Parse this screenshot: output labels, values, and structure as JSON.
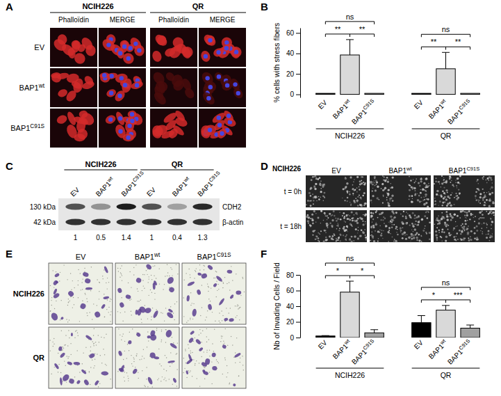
{
  "panels": {
    "A": {
      "panel_label": "A",
      "cell_lines": [
        "NCIH226",
        "QR"
      ],
      "stains": [
        "Phalloïdin",
        "MERGE"
      ],
      "rows": [
        "EV",
        "BAP1wt",
        "BAP1C91S"
      ]
    },
    "C": {
      "panel_label": "C",
      "cell_lines": [
        "NCIH226",
        "QR"
      ],
      "lanes": [
        "EV",
        "BAP1wt",
        "BAP1C91S"
      ],
      "bands": [
        {
          "size": "130 kDa",
          "protein": "CDH2"
        },
        {
          "size": "42 kDa",
          "protein": "β-actin"
        }
      ],
      "quantification": [
        1,
        0.5,
        1.4,
        1,
        0.4,
        1.3
      ]
    },
    "D": {
      "panel_label": "D",
      "cell_line": "NCIH226",
      "columns": [
        "EV",
        "BAP1wt",
        "BAP1C91S"
      ],
      "rows": [
        "t = 0h",
        "t = 18h"
      ]
    },
    "E": {
      "panel_label": "E",
      "columns": [
        "EV",
        "BAP1wt",
        "BAP1C91S"
      ],
      "rows": [
        "NCIH226",
        "QR"
      ]
    }
  },
  "chart_data": [
    {
      "panel_label": "B",
      "type": "bar",
      "y_label": "% cells with stress fibers",
      "categories": [
        "EV",
        "BAP1wt",
        "BAP1C91S"
      ],
      "colors": [
        "#000000",
        "#d9d9d9",
        "#a0a0a0"
      ],
      "ylim": [
        -3,
        65
      ],
      "yticks": [
        0,
        20,
        40,
        60
      ],
      "groups": [
        {
          "name": "NCIH226",
          "values": [
            1,
            38.5,
            1
          ],
          "errors": [
            0,
            15,
            0
          ],
          "comparisons": [
            {
              "from": "EV",
              "to": "BAP1wt",
              "label": "**"
            },
            {
              "from": "BAP1wt",
              "to": "BAP1C91S",
              "label": "**"
            },
            {
              "from": "EV",
              "to": "BAP1C91S",
              "label": "ns"
            }
          ]
        },
        {
          "name": "QR",
          "values": [
            1,
            25,
            1
          ],
          "errors": [
            0,
            16,
            0
          ],
          "comparisons": [
            {
              "from": "EV",
              "to": "BAP1wt",
              "label": "**"
            },
            {
              "from": "BAP1wt",
              "to": "BAP1C91S",
              "label": "**"
            },
            {
              "from": "EV",
              "to": "BAP1C91S",
              "label": "ns"
            }
          ]
        }
      ]
    },
    {
      "panel_label": "F",
      "type": "bar",
      "y_label": "Nb of Invading Cells / Field",
      "categories": [
        "EV",
        "BAP1wt",
        "BAP1C91S"
      ],
      "colors": [
        "#000000",
        "#d9d9d9",
        "#a0a0a0"
      ],
      "ylim": [
        0,
        80
      ],
      "yticks": [
        0,
        20,
        40,
        60,
        80
      ],
      "groups": [
        {
          "name": "NCIH226",
          "values": [
            2,
            58,
            6
          ],
          "errors": [
            0.5,
            14,
            4
          ],
          "comparisons": [
            {
              "from": "EV",
              "to": "BAP1wt",
              "label": "*"
            },
            {
              "from": "BAP1wt",
              "to": "BAP1C91S",
              "label": "*"
            },
            {
              "from": "EV",
              "to": "BAP1C91S",
              "label": "ns"
            }
          ]
        },
        {
          "name": "QR",
          "values": [
            19,
            35,
            12
          ],
          "errors": [
            9,
            6,
            4
          ],
          "comparisons": [
            {
              "from": "EV",
              "to": "BAP1wt",
              "label": "*"
            },
            {
              "from": "BAP1wt",
              "to": "BAP1C91S",
              "label": "***"
            },
            {
              "from": "EV",
              "to": "BAP1C91S",
              "label": "ns"
            }
          ]
        }
      ]
    }
  ]
}
